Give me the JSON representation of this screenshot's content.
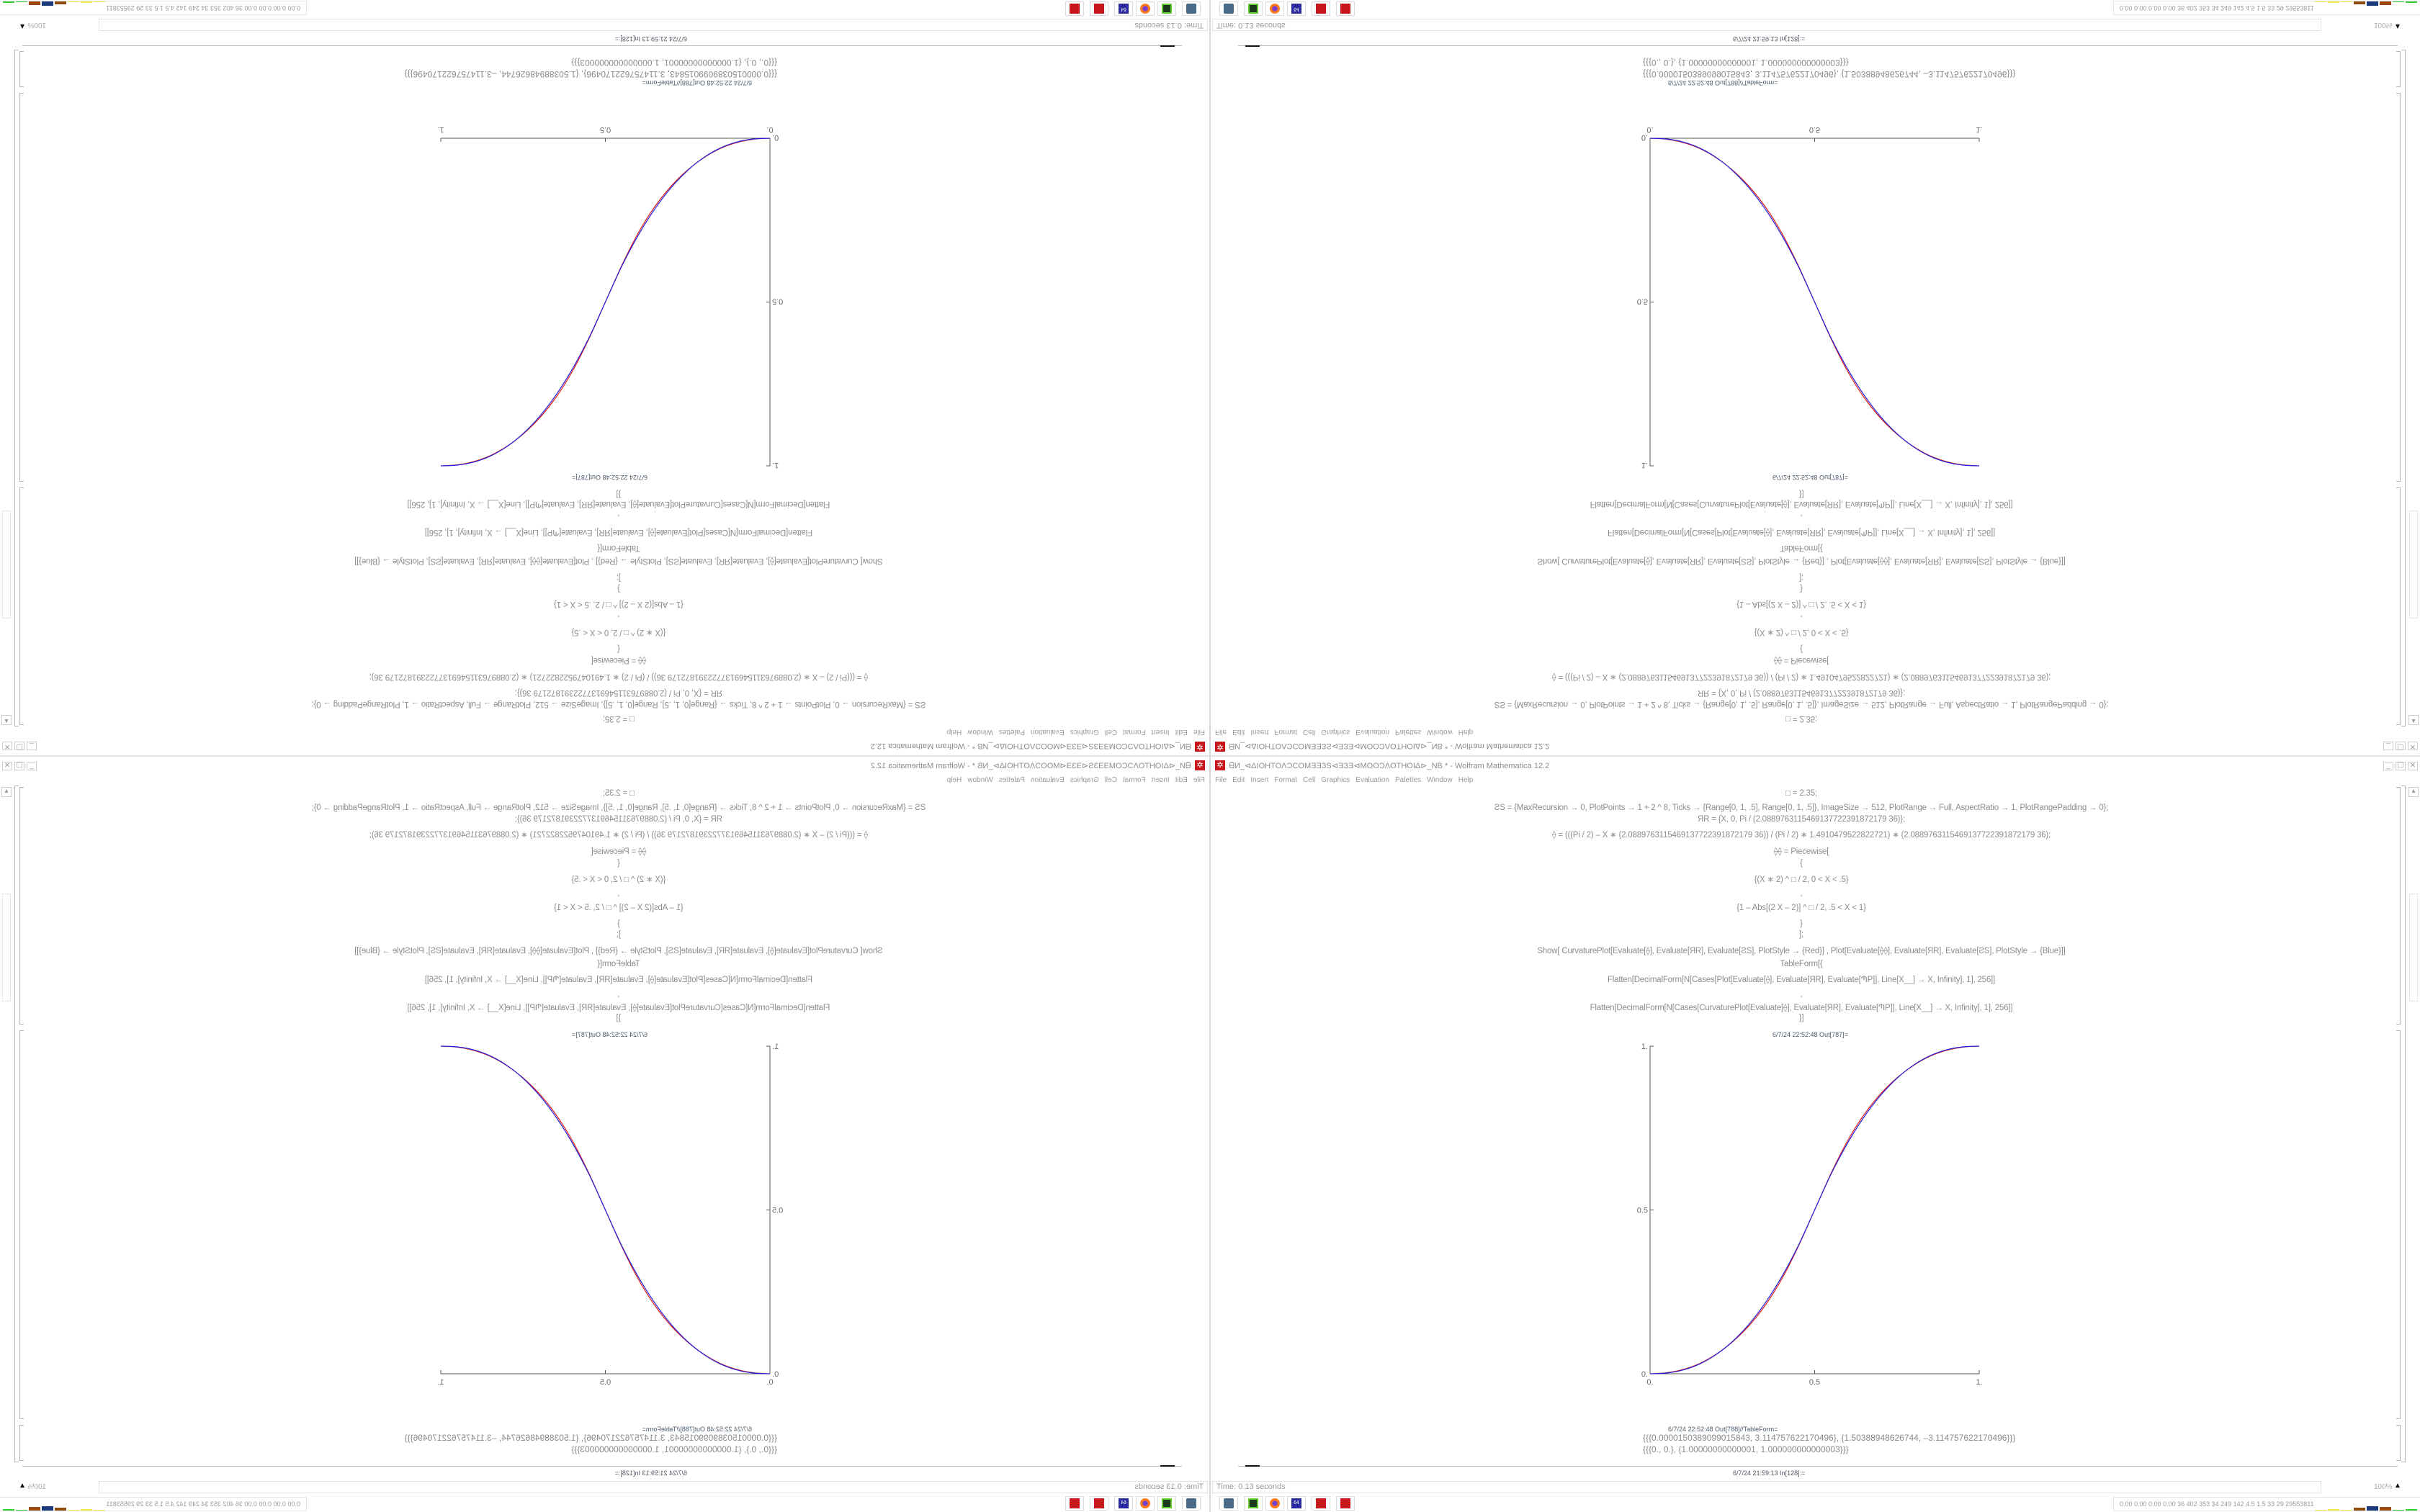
{
  "window": {
    "title": "ᗺИ_⊲ΔIOHTOΛƆCOMƎƎЗS⊲ƎЗƎ⊲MOOƆΛOTHOIΔ⊳_NB * - Wolfram Mathematica 12.2",
    "controls": {
      "minimize": "_",
      "maximize": "☐",
      "close": "✕"
    }
  },
  "menu": [
    "File",
    "Edit",
    "Insert",
    "Format",
    "Cell",
    "Graphics",
    "Evaluation",
    "Palettes",
    "Window",
    "Help"
  ],
  "code_lines": [
    "□ = 2.35;",
    "ƧS = {MaxRecursion → 0, PlotPoints → 1 + 2 ^ 8, Ticks → {Range[0, 1, .5], Range[0, 1, .5]}, ImageSize → 512, PlotRange → Full, AspectRatio → 1, PlotRangePadding → 0};",
    "ЯR = {X, 0, Pi / (2.0889763115469137722391872179 36)};",
    "⟠ = (((Pi / 2) – X ∗ (2.0889763115469137722391872179 36)) / (Pi / 2) ∗ 1.4910479522822721) ∗ (2.0889763115469137722391872179 36);",
    "⟠⟠ = Piecewise[",
    "{",
    "{(X ∗ 2) ^ □ / 2, 0 < X < .5}",
    ",",
    "{1 – Abs[(2 X – 2)] ^ □ / 2, .5 < X < 1}",
    "}",
    "];",
    "Show[   CurvaturePlot[Evaluate[⟠], Evaluate[ЯR], Evaluate[ƧS], PlotStyle → {Red}]   ,   Plot[Evaluate[⟠⟠], Evaluate[ЯR], Evaluate[ƧS],  PlotStyle → {Blue}]]",
    "TableForm[{",
    "Flatten[DecimalForm[N[Cases[Plot[Evaluate[⟠], Evaluate[ЯR], Evaluate[ՊP]], Line[X__] → X, Infinity], 1], 256]]",
    ",",
    "Flatten[DecimalForm[N[Cases[CurvaturePlot[Evaluate[⟠], Evaluate[ЯR], Evaluate[ՊP]], Line[X__] → X, Infinity], 1], 256]]",
    "}]"
  ],
  "out_plot_label": "6/7/24 22:52:48 Out[787]=",
  "out_table_label": "6/7/24 22:52:48 Out[788]//TableForm=",
  "out_table": [
    "{{{0.0000150389099015843, 3.114757622170496}, {1.50388948626744, –3.114757622170496}}}",
    "{{{0., 0.}, {1.00000000000001, 1.000000000000003}}}"
  ],
  "input_label": "6/7/24 21:59:13 In[128]:=",
  "status": {
    "time": "Time: 0.13 seconds",
    "zoom": "100%"
  },
  "taskbar": {
    "icons": [
      "monitor-icon",
      "terminal-icon",
      "firefox-icon",
      "floppy-64-icon",
      "mathematica-icon",
      "mathematica-icon"
    ],
    "stats": "0.00 0.00 0.00 0.00  36  402  353  34  249  142  4.5  1.5  33  29  29553811"
  },
  "chart_data": {
    "type": "line",
    "xlim": [
      0,
      1
    ],
    "ylim": [
      0,
      1
    ],
    "x_ticks": [
      "0.",
      "0.5",
      "1."
    ],
    "y_ticks": [
      "0.",
      "0.5",
      "1."
    ],
    "x": [
      0,
      0.05,
      0.1,
      0.15,
      0.2,
      0.25,
      0.3,
      0.35,
      0.4,
      0.45,
      0.5,
      0.55,
      0.6,
      0.65,
      0.7,
      0.75,
      0.8,
      0.85,
      0.9,
      0.95,
      1
    ],
    "series": [
      {
        "color": "#e02020",
        "values": [
          0,
          0.003,
          0.013,
          0.031,
          0.059,
          0.097,
          0.146,
          0.209,
          0.289,
          0.388,
          0.5,
          0.612,
          0.711,
          0.791,
          0.854,
          0.903,
          0.941,
          0.969,
          0.987,
          0.997,
          1
        ]
      },
      {
        "color": "#2020e0",
        "values": [
          0,
          0.0022,
          0.0114,
          0.0295,
          0.0581,
          0.0981,
          0.1506,
          0.2163,
          0.296,
          0.3904,
          0.5,
          0.6096,
          0.704,
          0.7837,
          0.8494,
          0.9019,
          0.9419,
          0.9705,
          0.9886,
          0.9978,
          1
        ]
      }
    ]
  }
}
